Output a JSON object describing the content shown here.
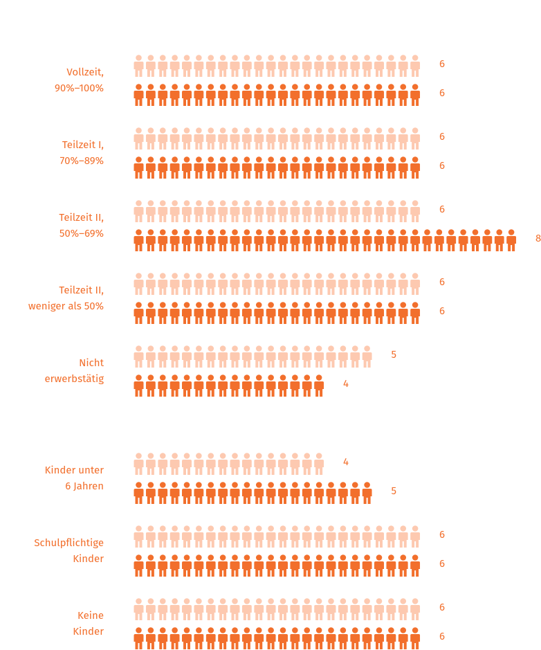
{
  "chart_data": {
    "type": "pictogram",
    "categories": [
      "Vollzeit,\n90%–100%",
      "Teilzeit I,\n70%–89%",
      "Teilzeit II,\n50%–69%",
      "Teilzeit II,\nweniger als 50%",
      "Nicht\nerwerbstätig",
      "Kinder unter\n6 Jahren",
      "Schulpflichtige\nKinder",
      "Keine\nKinder"
    ],
    "series": [
      {
        "color": "#fdc9b0",
        "values": [
          6,
          6,
          6,
          6,
          5,
          4,
          6,
          6
        ]
      },
      {
        "color": "#f26f2c",
        "values": [
          6,
          6,
          8,
          6,
          4,
          5,
          6,
          6
        ]
      }
    ],
    "xlim": [
      0,
      8
    ]
  }
}
